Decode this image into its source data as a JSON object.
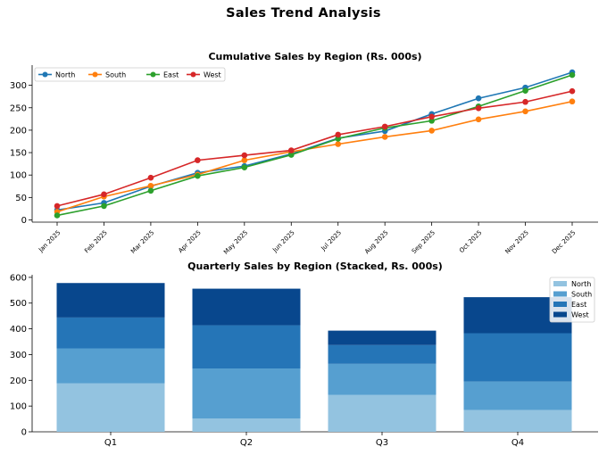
{
  "title": "Sales Trend Analysis",
  "chart_data": [
    {
      "type": "line",
      "title": "Cumulative Sales by Region (Rs. 000s)",
      "xlabel": "",
      "ylabel": "",
      "categories": [
        "Jan 2025",
        "Feb 2025",
        "Mar 2025",
        "Apr 2025",
        "May 2025",
        "Jun 2025",
        "Jul 2025",
        "Aug 2025",
        "Sep 2025",
        "Oct 2025",
        "Nov 2025",
        "Dec 2025"
      ],
      "ylim": [
        -5,
        345
      ],
      "yticks": [
        0,
        50,
        100,
        150,
        200,
        250,
        300
      ],
      "grid": false,
      "legend": "top-left",
      "series": [
        {
          "name": "North",
          "color": "#1f77b4",
          "values": [
            22,
            38,
            75,
            105,
            120,
            147,
            182,
            198,
            236,
            271,
            295,
            329
          ]
        },
        {
          "name": "South",
          "color": "#ff7f0e",
          "values": [
            18,
            52,
            76,
            101,
            133,
            152,
            169,
            185,
            199,
            224,
            242,
            264
          ]
        },
        {
          "name": "East",
          "color": "#2ca02c",
          "values": [
            10,
            31,
            65,
            98,
            117,
            145,
            181,
            205,
            221,
            253,
            288,
            323
          ]
        },
        {
          "name": "West",
          "color": "#d62728",
          "values": [
            31,
            57,
            94,
            133,
            144,
            155,
            190,
            208,
            230,
            249,
            263,
            287
          ]
        }
      ]
    },
    {
      "type": "bar",
      "stacked": true,
      "title": "Quarterly Sales by Region (Stacked, Rs. 000s)",
      "xlabel": "",
      "ylabel": "",
      "categories": [
        "Q1",
        "Q2",
        "Q3",
        "Q4"
      ],
      "ylim": [
        0,
        610
      ],
      "yticks": [
        0,
        100,
        200,
        300,
        400,
        500,
        600
      ],
      "grid": false,
      "legend": "top-right",
      "series": [
        {
          "name": "North",
          "color": "#93c3e0",
          "values": [
            188,
            52,
            143,
            85
          ]
        },
        {
          "name": "South",
          "color": "#569fd0",
          "values": [
            136,
            194,
            121,
            110
          ]
        },
        {
          "name": "East",
          "color": "#2575b7",
          "values": [
            120,
            168,
            73,
            188
          ]
        },
        {
          "name": "West",
          "color": "#08478d",
          "values": [
            134,
            142,
            56,
            140
          ]
        }
      ]
    }
  ]
}
